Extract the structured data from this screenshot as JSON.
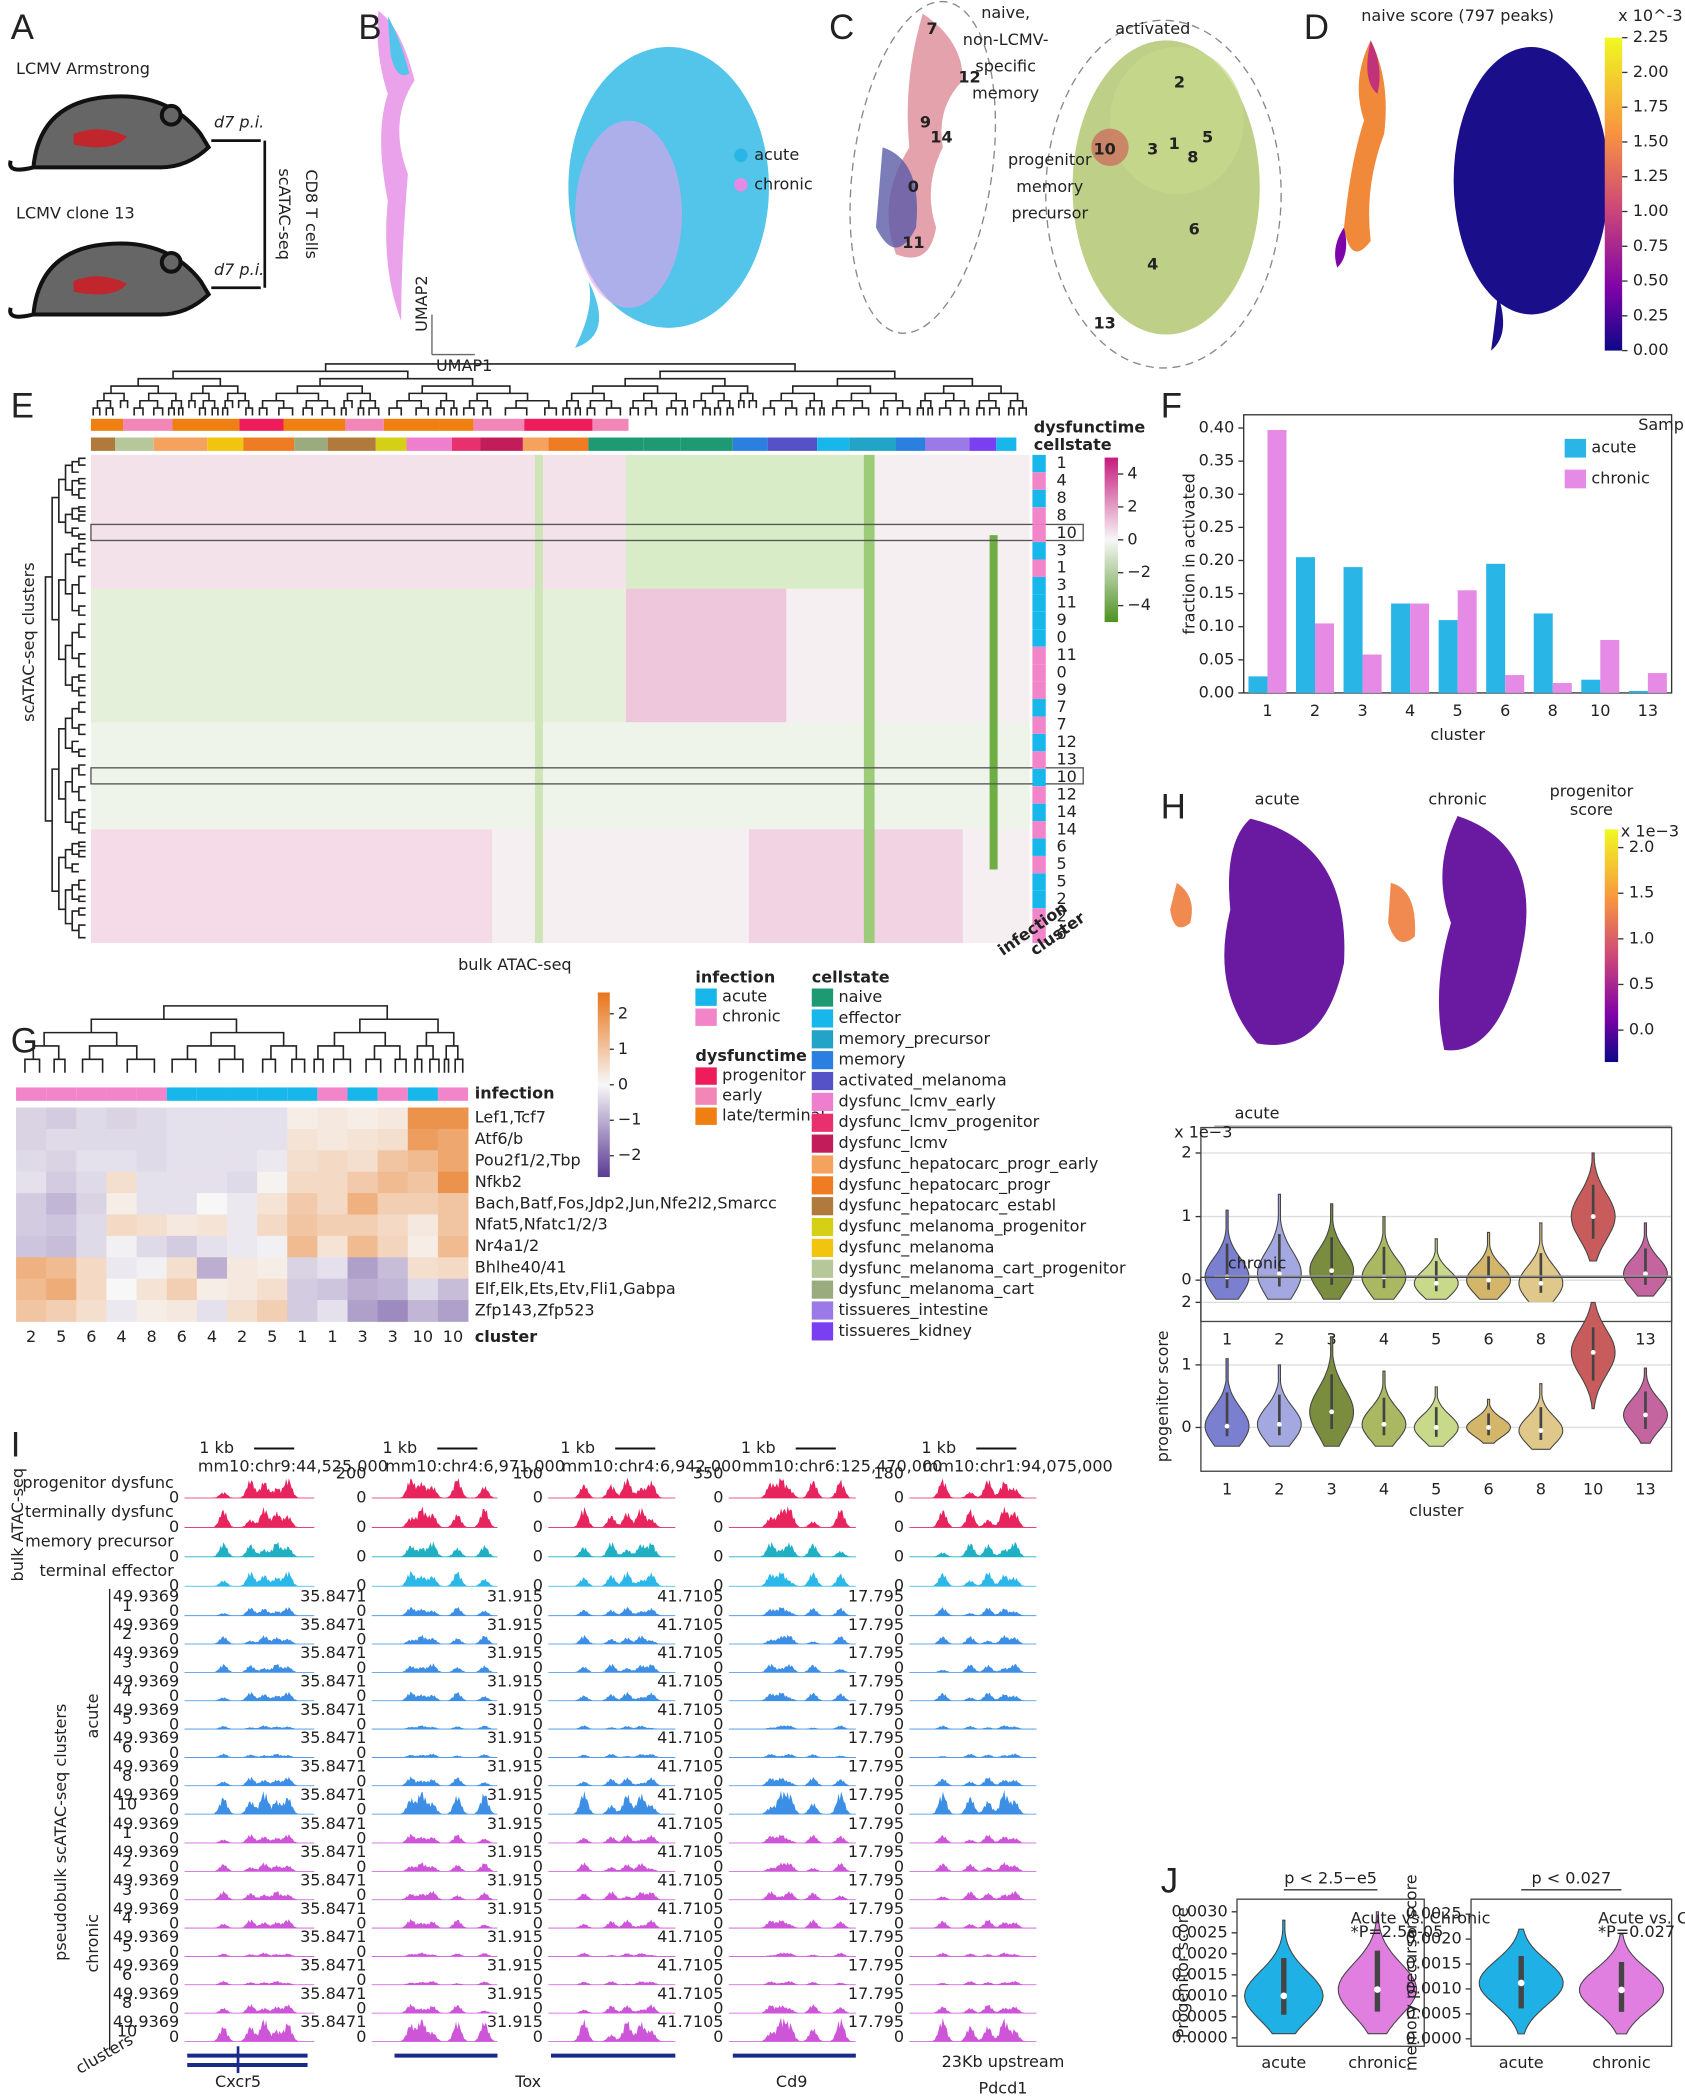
{
  "panel_labels": [
    "A",
    "B",
    "C",
    "D",
    "E",
    "F",
    "G",
    "H",
    "I",
    "J"
  ],
  "a": {
    "top": "LCMV Armstrong",
    "bottom": "LCMV clone 13",
    "time": "d7 p.i.",
    "cells": "CD8 T cells",
    "assay": "scATAC-seq"
  },
  "b": {
    "legend": [
      {
        "label": "acute",
        "color": "#29b6e6"
      },
      {
        "label": "chronic",
        "color": "#e58be6"
      }
    ],
    "x_axis": "UMAP1",
    "y_axis": "UMAP2"
  },
  "c": {
    "naive": [
      "naive,",
      "non-LCMV-",
      "specific",
      "memory"
    ],
    "activated": "activated",
    "progenitor": [
      "progenitor",
      "memory",
      "precursor"
    ],
    "clusters": [
      "7",
      "12",
      "9",
      "14",
      "0",
      "11",
      "10",
      "2",
      "3",
      "1",
      "5",
      "8",
      "6",
      "4",
      "13"
    ]
  },
  "d": {
    "title": "naive score (797 peaks)",
    "exponent": "x 10^-3",
    "lim": [
      0,
      2.25
    ],
    "ticks": [
      {
        "value": 0,
        "label": "0.00"
      },
      0.25,
      {
        "value": 0.5,
        "label": "0.50"
      },
      0.75,
      {
        "value": 1,
        "label": "1.00"
      },
      1.25,
      {
        "value": 1.5,
        "label": "1.50"
      },
      1.75,
      {
        "value": 2,
        "label": "2.00"
      },
      2.25
    ]
  },
  "e": {
    "dysfunctime": "dysfunctime",
    "cellstate": "cellstate",
    "y_axis": "scATAC-seq clusters",
    "x_axis": "bulk ATAC-seq",
    "infection": "infection",
    "cluster": "cluster",
    "rows": [
      "1",
      "4",
      "8",
      "8",
      "10",
      "3",
      "1",
      "3",
      "11",
      "9",
      "0",
      "11",
      "0",
      "9",
      "7",
      "7",
      "12",
      "13",
      "10",
      "12",
      "14",
      "14",
      "6",
      "5",
      "5",
      "2",
      "2",
      "6"
    ],
    "row_colors": [
      "#18b7eb",
      "#f284c9",
      "#18b7eb",
      "#f284c9",
      "#f284c9",
      "#18b7eb",
      "#f284c9",
      "#18b7eb",
      "#18b7eb",
      "#18b7eb",
      "#18b7eb",
      "#f284c9",
      "#f284c9",
      "#f284c9",
      "#18b7eb",
      "#f284c9",
      "#18b7eb",
      "#f284c9",
      "#18b7eb",
      "#f284c9",
      "#18b7eb",
      "#f284c9",
      "#18b7eb",
      "#f284c9",
      "#18b7eb",
      "#18b7eb",
      "#f284c9",
      "#f284c9"
    ],
    "lim": [
      -5,
      5
    ],
    "ticks": [
      4,
      2,
      0,
      {
        "value": -2,
        "label": "−2"
      },
      {
        "value": -4,
        "label": "−4"
      }
    ]
  },
  "legend": {
    "infection": {
      "title": "infection",
      "items": [
        {
          "label": "acute",
          "color": "#18b7eb"
        },
        {
          "label": "chronic",
          "color": "#f284c9"
        }
      ]
    },
    "dysfunctime": {
      "title": "dysfunctime",
      "items": [
        {
          "label": "progenitor",
          "color": "#ee1c5b"
        },
        {
          "label": "early",
          "color": "#f286b6"
        },
        {
          "label": "late/terminal",
          "color": "#f07f12"
        }
      ]
    },
    "cellstate": {
      "title": "cellstate",
      "items": [
        {
          "label": "naive",
          "color": "#1e9a73"
        },
        {
          "label": "effector",
          "color": "#18b7eb"
        },
        {
          "label": "memory_precursor",
          "color": "#22a3c8"
        },
        {
          "label": "memory",
          "color": "#2a7fe0"
        },
        {
          "label": "activated_melanoma",
          "color": "#5552c8"
        },
        {
          "label": "dysfunc_lcmv_early",
          "color": "#ee7fcf"
        },
        {
          "label": "dysfunc_lcmv_progenitor",
          "color": "#e8306e"
        },
        {
          "label": "dysfunc_lcmv",
          "color": "#c21d5a"
        },
        {
          "label": "dysfunc_hepatocarc_progr_early",
          "color": "#f5a25e"
        },
        {
          "label": "dysfunc_hepatocarc_progr",
          "color": "#ef7b22"
        },
        {
          "label": "dysfunc_hepatocarc_establ",
          "color": "#b07a3c"
        },
        {
          "label": "dysfunc_melanoma_progenitor",
          "color": "#d5cf15"
        },
        {
          "label": "dysfunc_melanoma",
          "color": "#f1c40f"
        },
        {
          "label": "dysfunc_melanoma_cart_progenitor",
          "color": "#b6c79a"
        },
        {
          "label": "dysfunc_melanoma_cart",
          "color": "#9aac7e"
        },
        {
          "label": "tissueres_intestine",
          "color": "#9b79e6"
        },
        {
          "label": "tissueres_kidney",
          "color": "#7b3ff2"
        }
      ]
    }
  },
  "h": {
    "acute": "acute",
    "chronic": "chronic",
    "score": [
      "progenitor",
      "score"
    ],
    "exponent": "x 1e−3",
    "lim": [
      -0.35,
      2.2
    ],
    "ticks": [
      {
        "value": 0,
        "label": "0.0"
      },
      0.5,
      {
        "value": 1,
        "label": "1.0"
      },
      1.5,
      {
        "value": 2,
        "label": "2.0"
      }
    ]
  },
  "i": {
    "scale": "1 kb",
    "coords": [
      "mm10:chr9:44,525,000",
      "mm10:chr4:6,971,000",
      "mm10:chr4:6,942,000",
      "mm10:chr6:125,470,000",
      "mm10:chr1:94,075,000"
    ],
    "bulk": [
      "progenitor dysfunc",
      "terminally dysfunc",
      "memory precursor",
      "terminal effector"
    ],
    "bulk_colors": [
      "#e8245e",
      "#e8245e",
      "#1fb0c4",
      "#2bb8e8"
    ],
    "bulk_axis": "bulk ATAC-seq",
    "acute": "acute",
    "chronic": "chronic",
    "pseudo": "pseudobulk scATAC-seq clusters",
    "clusters_label": "clusters",
    "clusters": [
      "1",
      "2",
      "3",
      "4",
      "5",
      "6",
      "8",
      "10"
    ],
    "acute_color": "#3d8fe6",
    "chronic_color": "#cc55d8",
    "sc_scale": [
      "49.9369",
      "35.8471",
      "31.915",
      "41.7105",
      "17.795"
    ],
    "bulk_scale": [
      "200",
      "100",
      "350",
      "180"
    ],
    "zero": "0",
    "genes": [
      [
        "Cxcr5"
      ],
      [
        "Tox"
      ],
      [
        "Cd9"
      ],
      [
        "23Kb upstream",
        "Pdcd1"
      ]
    ]
  },
  "chart_data": [
    {
      "type": "bar",
      "y_label": "fraction in activated",
      "x_label": "cluster",
      "legend_title": "Sample",
      "categories": [
        "1",
        "2",
        "3",
        "4",
        "5",
        "6",
        "8",
        "10",
        "13"
      ],
      "series": [
        {
          "name": "acute",
          "color": "#29b6e6",
          "values": [
            0.025,
            0.205,
            0.19,
            0.135,
            0.11,
            0.195,
            0.12,
            0.02,
            0.003
          ]
        },
        {
          "name": "chronic",
          "color": "#e58be6",
          "values": [
            0.397,
            0.105,
            0.058,
            0.135,
            0.155,
            0.027,
            0.015,
            0.08,
            0.03
          ]
        }
      ],
      "ylim": [
        0,
        0.42
      ],
      "yticks": [
        {
          "value": 0,
          "label": "0.00"
        },
        0.05,
        {
          "value": 0.1,
          "label": "0.10"
        },
        0.15,
        {
          "value": 0.2,
          "label": "0.20"
        },
        0.25,
        {
          "value": 0.3,
          "label": "0.30"
        },
        0.35,
        {
          "value": 0.4,
          "label": "0.40"
        }
      ]
    },
    {
      "type": "violin",
      "title": "acute",
      "exponent": "x 1e−3",
      "y_label": "progenitor score",
      "grid": true,
      "categories": [
        "1",
        "2",
        "3",
        "4",
        "5",
        "6",
        "8",
        "10",
        "13"
      ],
      "colors": [
        "#7b7fd0",
        "#a4a8e0",
        "#7a8c3d",
        "#aab861",
        "#c8d98a",
        "#d3b66a",
        "#e0c88a",
        "#c85c5c",
        "#c565a0"
      ],
      "values": [
        0.05,
        0.1,
        0.15,
        0.05,
        -0.05,
        0,
        -0.05,
        1.0,
        0.1
      ],
      "lows": [
        -0.3,
        -0.3,
        -0.3,
        -0.3,
        -0.3,
        -0.3,
        -0.35,
        0.3,
        -0.25
      ],
      "highs": [
        1.1,
        1.35,
        1.2,
        1.0,
        0.65,
        0.75,
        0.9,
        2.0,
        0.9
      ],
      "ylim": [
        -0.65,
        2.4
      ],
      "yticks": [
        0,
        1,
        2
      ]
    },
    {
      "type": "violin",
      "title": "chronic",
      "x_label": "cluster",
      "grid": true,
      "categories": [
        "1",
        "2",
        "3",
        "4",
        "5",
        "6",
        "8",
        "10",
        "13"
      ],
      "colors": [
        "#7b7fd0",
        "#a4a8e0",
        "#7a8c3d",
        "#aab861",
        "#c8d98a",
        "#d3b66a",
        "#e0c88a",
        "#c85c5c",
        "#c565a0"
      ],
      "values": [
        0.02,
        0.05,
        0.25,
        0.05,
        0,
        0,
        -0.05,
        1.2,
        0.2
      ],
      "lows": [
        -0.3,
        -0.3,
        -0.3,
        -0.3,
        -0.3,
        -0.25,
        -0.35,
        0.3,
        -0.25
      ],
      "highs": [
        1.1,
        1.0,
        1.45,
        0.9,
        0.65,
        0.45,
        0.7,
        2.0,
        0.95
      ],
      "ylim": [
        -0.7,
        2.4
      ],
      "yticks": [
        0,
        1,
        2
      ]
    },
    {
      "type": "violin",
      "title": "p < 2.5−e5",
      "y_label": "Progenitor score",
      "annotation": [
        "Acute vs. Chronic",
        "*P=2.5e-05"
      ],
      "categories": [
        "acute",
        "chronic"
      ],
      "colors": [
        "#1fb0e6",
        "#e07fe0"
      ],
      "values": [
        0.001,
        0.00115
      ],
      "lows": [
        0.0001,
        0.0001
      ],
      "highs": [
        0.0028,
        0.003
      ],
      "ylim": [
        -0.0002,
        0.0033
      ],
      "yticks": [
        {
          "value": 0,
          "label": "0.0000"
        },
        0.0005,
        {
          "value": 0.001,
          "label": "0.0010"
        },
        0.0015,
        {
          "value": 0.002,
          "label": "0.0020"
        },
        0.0025,
        {
          "value": 0.003,
          "label": "0.0030"
        }
      ]
    },
    {
      "type": "violin",
      "title": "p < 0.027",
      "y_label": "memory precursor score",
      "annotation": [
        "Acute vs. Chronic",
        "*P=0.027"
      ],
      "categories": [
        "acute",
        "chronic"
      ],
      "colors": [
        "#1fb0e6",
        "#e07fe0"
      ],
      "values": [
        0.00112,
        0.00098
      ],
      "lows": [
        0.0001,
        0.0001
      ],
      "highs": [
        0.0022,
        0.0021
      ],
      "ylim": [
        -0.00015,
        0.0028
      ],
      "yticks": [
        {
          "value": 0,
          "label": "0.0000"
        },
        0.0005,
        {
          "value": 0.001,
          "label": "0.0010"
        },
        0.0015,
        {
          "value": 0.002,
          "label": "0.0020"
        },
        0.0025
      ]
    },
    {
      "type": "heatmap",
      "top_label": "infection",
      "x_label": "cluster",
      "columns": [
        "2",
        "5",
        "6",
        "4",
        "8",
        "6",
        "4",
        "2",
        "5",
        "1",
        "1",
        "3",
        "3",
        "10",
        "10"
      ],
      "column_colors": [
        "#f284c9",
        "#f284c9",
        "#f284c9",
        "#f284c9",
        "#f284c9",
        "#18b7eb",
        "#18b7eb",
        "#18b7eb",
        "#18b7eb",
        "#18b7eb",
        "#f284c9",
        "#18b7eb",
        "#f284c9",
        "#18b7eb",
        "#f284c9"
      ],
      "rows": [
        "Lef1,Tcf7",
        "Atf6/b",
        "Pou2f1/2,Tbp",
        "Nfkb2",
        "Bach,Batf,Fos,Jdp2,Jun,Nfe2l2,Smarcc",
        "Nfat5,Nfatc1/2/3",
        "Nr4a1/2",
        "Bhlhe40/41",
        "Elf,Elk,Ets,Etv,Fli1,Gabpa",
        "Zfp143,Zfp523"
      ],
      "values": [
        [
          -0.5,
          -0.6,
          -0.4,
          -0.5,
          -0.4,
          -0.3,
          -0.3,
          -0.3,
          -0.3,
          0.2,
          0.3,
          0.2,
          0.3,
          2.0,
          2.0
        ],
        [
          -0.5,
          -0.4,
          -0.4,
          -0.4,
          -0.4,
          -0.3,
          -0.3,
          -0.3,
          -0.3,
          0.4,
          0.3,
          0.4,
          0.5,
          1.8,
          1.6
        ],
        [
          -0.4,
          -0.5,
          -0.3,
          -0.3,
          -0.4,
          -0.3,
          -0.3,
          -0.3,
          -0.2,
          0.5,
          0.6,
          0.5,
          1.0,
          1.2,
          1.6
        ],
        [
          -0.3,
          -0.6,
          -0.4,
          0.5,
          -0.3,
          -0.3,
          -0.3,
          -0.4,
          0.1,
          0.6,
          0.6,
          0.9,
          1.2,
          1.0,
          2.0
        ],
        [
          -0.6,
          -0.9,
          -0.5,
          0.2,
          -0.3,
          -0.3,
          0.0,
          -0.2,
          0.4,
          0.9,
          0.6,
          1.4,
          0.8,
          0.8,
          1.0
        ],
        [
          -0.6,
          -0.7,
          -0.4,
          0.6,
          0.5,
          0.3,
          0.4,
          -0.2,
          0.6,
          1.0,
          0.8,
          0.8,
          0.6,
          0.3,
          1.0
        ],
        [
          -0.7,
          -0.8,
          -0.4,
          -0.1,
          -0.4,
          -0.6,
          -0.3,
          -0.2,
          -0.1,
          1.2,
          0.4,
          1.2,
          0.7,
          0.2,
          1.2
        ],
        [
          1.4,
          1.2,
          0.6,
          -0.2,
          -0.1,
          0.5,
          -1.0,
          0.3,
          0.2,
          -0.5,
          -0.3,
          -1.2,
          -0.8,
          0.5,
          0.6
        ],
        [
          1.2,
          1.5,
          0.6,
          0.0,
          0.4,
          0.8,
          0.2,
          0.3,
          0.5,
          -0.6,
          -0.7,
          -1.0,
          -0.9,
          -0.4,
          -0.8
        ],
        [
          1.0,
          0.8,
          0.5,
          -0.2,
          0.2,
          0.3,
          -0.3,
          0.5,
          0.8,
          -0.6,
          -0.3,
          -1.2,
          -1.5,
          -0.9,
          -1.2
        ]
      ],
      "clim": [
        -2.6,
        2.6
      ],
      "cticks": [
        2,
        1,
        0,
        {
          "value": -1,
          "label": "−1"
        },
        {
          "value": -2,
          "label": "−2"
        }
      ]
    }
  ]
}
